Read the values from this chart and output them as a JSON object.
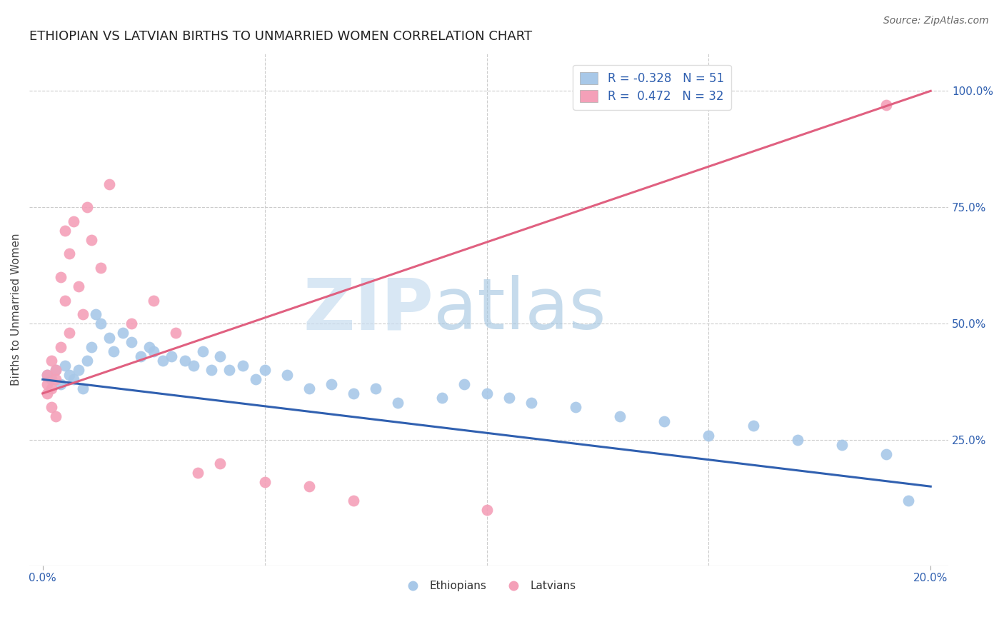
{
  "title": "ETHIOPIAN VS LATVIAN BIRTHS TO UNMARRIED WOMEN CORRELATION CHART",
  "source": "Source: ZipAtlas.com",
  "ylabel": "Births to Unmarried Women",
  "ylabel_right_ticks": [
    "100.0%",
    "75.0%",
    "50.0%",
    "25.0%"
  ],
  "ylabel_right_vals": [
    1.0,
    0.75,
    0.5,
    0.25
  ],
  "xlim": [
    0.0,
    0.2
  ],
  "ylim": [
    0.0,
    1.08
  ],
  "watermark_zip": "ZIP",
  "watermark_atlas": "atlas",
  "legend_line1": "R = -0.328   N = 51",
  "legend_line2": "R =  0.472   N = 32",
  "ethiopian_color": "#a8c8e8",
  "latvian_color": "#f4a0b8",
  "trend_blue": "#3060b0",
  "trend_pink": "#e06080",
  "background": "#ffffff",
  "grid_color": "#cccccc",
  "ethiopian_x": [
    0.001,
    0.002,
    0.003,
    0.004,
    0.005,
    0.006,
    0.007,
    0.008,
    0.009,
    0.01,
    0.011,
    0.012,
    0.013,
    0.015,
    0.016,
    0.018,
    0.02,
    0.022,
    0.024,
    0.025,
    0.027,
    0.029,
    0.032,
    0.034,
    0.036,
    0.038,
    0.04,
    0.042,
    0.045,
    0.048,
    0.05,
    0.055,
    0.06,
    0.065,
    0.07,
    0.075,
    0.08,
    0.09,
    0.095,
    0.1,
    0.105,
    0.11,
    0.12,
    0.13,
    0.14,
    0.15,
    0.16,
    0.17,
    0.18,
    0.19,
    0.195
  ],
  "ethiopian_y": [
    0.39,
    0.38,
    0.4,
    0.37,
    0.41,
    0.39,
    0.38,
    0.4,
    0.36,
    0.42,
    0.45,
    0.52,
    0.5,
    0.47,
    0.44,
    0.48,
    0.46,
    0.43,
    0.45,
    0.44,
    0.42,
    0.43,
    0.42,
    0.41,
    0.44,
    0.4,
    0.43,
    0.4,
    0.41,
    0.38,
    0.4,
    0.39,
    0.36,
    0.37,
    0.35,
    0.36,
    0.33,
    0.34,
    0.37,
    0.35,
    0.34,
    0.33,
    0.32,
    0.3,
    0.29,
    0.26,
    0.28,
    0.25,
    0.24,
    0.22,
    0.12
  ],
  "latvian_x": [
    0.001,
    0.001,
    0.001,
    0.002,
    0.002,
    0.002,
    0.003,
    0.003,
    0.003,
    0.004,
    0.004,
    0.005,
    0.005,
    0.006,
    0.006,
    0.007,
    0.008,
    0.009,
    0.01,
    0.011,
    0.013,
    0.015,
    0.02,
    0.025,
    0.03,
    0.035,
    0.04,
    0.05,
    0.06,
    0.07,
    0.1,
    0.19
  ],
  "latvian_y": [
    0.39,
    0.37,
    0.35,
    0.42,
    0.36,
    0.32,
    0.4,
    0.38,
    0.3,
    0.45,
    0.6,
    0.55,
    0.7,
    0.65,
    0.48,
    0.72,
    0.58,
    0.52,
    0.75,
    0.68,
    0.62,
    0.8,
    0.5,
    0.55,
    0.48,
    0.18,
    0.2,
    0.16,
    0.15,
    0.12,
    0.1,
    0.97
  ],
  "trend_eth_y0": 0.38,
  "trend_eth_y1": 0.15,
  "trend_lat_y0": 0.35,
  "trend_lat_y1": 1.0
}
